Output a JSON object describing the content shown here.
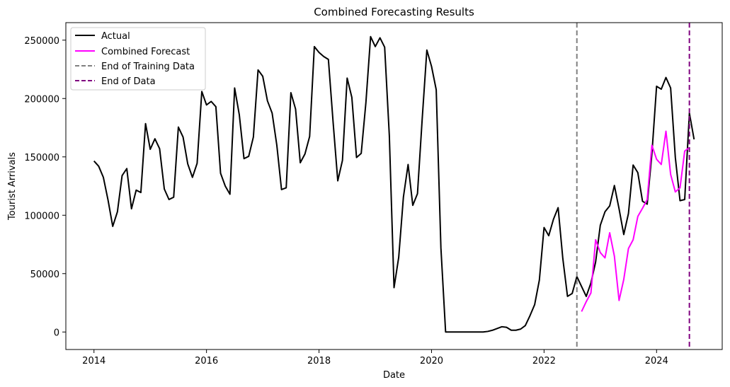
{
  "chart_data": {
    "type": "line",
    "title": "Combined Forecasting Results",
    "xlabel": "Date",
    "ylabel": "Tourist Arrivals",
    "xlim": [
      "2013-07",
      "2025-03"
    ],
    "ylim": [
      -15000,
      265000
    ],
    "x_ticks": [
      "2014",
      "2016",
      "2018",
      "2020",
      "2022",
      "2024"
    ],
    "y_ticks": [
      0,
      50000,
      100000,
      150000,
      200000,
      250000
    ],
    "y_tick_labels": [
      "0",
      "50000",
      "100000",
      "150000",
      "200000",
      "250000"
    ],
    "legend_position": "upper-left",
    "grid": false,
    "series": [
      {
        "name": "Actual",
        "color": "#000000",
        "start": "2014-01",
        "values": [
          146500,
          142000,
          132500,
          113000,
          90500,
          103000,
          134000,
          140000,
          105500,
          121500,
          119500,
          178500,
          156500,
          165500,
          157000,
          122500,
          113500,
          115500,
          175500,
          167000,
          144000,
          132500,
          144500,
          206000,
          194500,
          197500,
          193000,
          136000,
          125000,
          118000,
          209000,
          186000,
          148500,
          150500,
          167000,
          224500,
          219000,
          198000,
          187500,
          160000,
          122000,
          123500,
          205000,
          191000,
          145000,
          152500,
          167500,
          244500,
          239500,
          236000,
          233500,
          180000,
          129500,
          147000,
          217500,
          201000,
          149500,
          153000,
          196500,
          253000,
          244500,
          252000,
          244000,
          168000,
          38000,
          64000,
          115500,
          143500,
          108500,
          118500,
          182000,
          241500,
          227500,
          207500,
          72000,
          0,
          0,
          0,
          0,
          0,
          0,
          0,
          0,
          0,
          500,
          1500,
          3000,
          4500,
          4000,
          1500,
          1500,
          2500,
          5500,
          14000,
          23500,
          44500,
          89500,
          82500,
          96500,
          106500,
          63000,
          30500,
          33000,
          47500,
          39000,
          30500,
          42000,
          60000,
          91500,
          103000,
          108000,
          125500,
          105500,
          83500,
          101500,
          143000,
          136500,
          112000,
          109500,
          152500,
          210500,
          208000,
          218000,
          209000,
          149500,
          112500,
          113500,
          187500,
          165000
        ]
      },
      {
        "name": "Combined Forecast",
        "color": "#ff00ff",
        "start": "2022-09",
        "values": [
          17500,
          26000,
          33500,
          79000,
          68000,
          63500,
          85000,
          65000,
          27000,
          45000,
          71500,
          79000,
          99000,
          106000,
          113500,
          160000,
          148000,
          143500,
          172000,
          135000,
          120000,
          123500,
          155000,
          158000
        ]
      }
    ],
    "reference_lines": [
      {
        "name": "End of Training Data",
        "date": "2022-08",
        "color": "#808080"
      },
      {
        "name": "End of Data",
        "date": "2024-08",
        "color": "#800080"
      }
    ]
  }
}
